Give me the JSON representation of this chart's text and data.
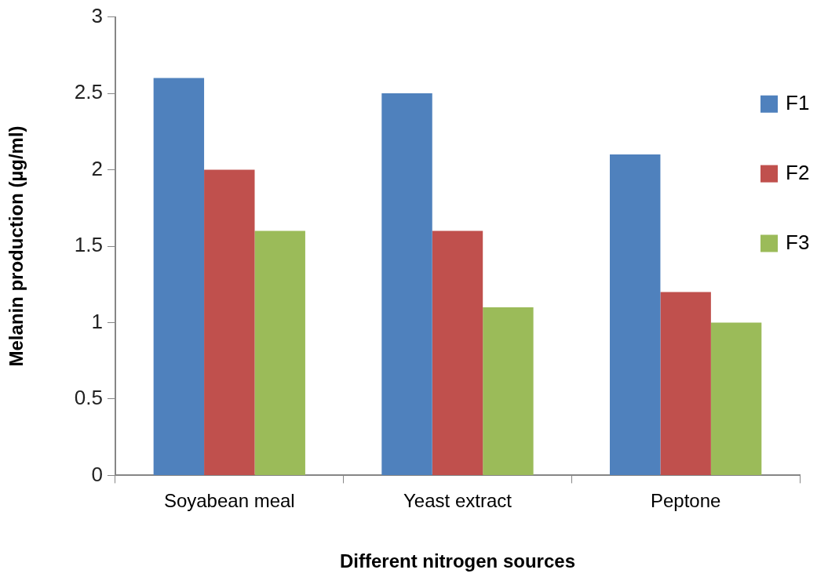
{
  "chart_data": {
    "type": "bar",
    "xlabel": "Different nitrogen sources",
    "ylabel": "Melanin production (µg/ml)",
    "categories": [
      "Soyabean meal",
      "Yeast extract",
      "Peptone"
    ],
    "series": [
      {
        "name": "F1",
        "color": "#4f81bd",
        "values": [
          2.6,
          2.5,
          2.1
        ]
      },
      {
        "name": "F2",
        "color": "#c0504d",
        "values": [
          2.0,
          1.6,
          1.2
        ]
      },
      {
        "name": "F3",
        "color": "#9bbb59",
        "values": [
          1.6,
          1.1,
          1.0
        ]
      }
    ],
    "ylim": [
      0,
      3
    ],
    "yticks": [
      0,
      0.5,
      1,
      1.5,
      2,
      2.5,
      3
    ],
    "legend": "top right"
  }
}
